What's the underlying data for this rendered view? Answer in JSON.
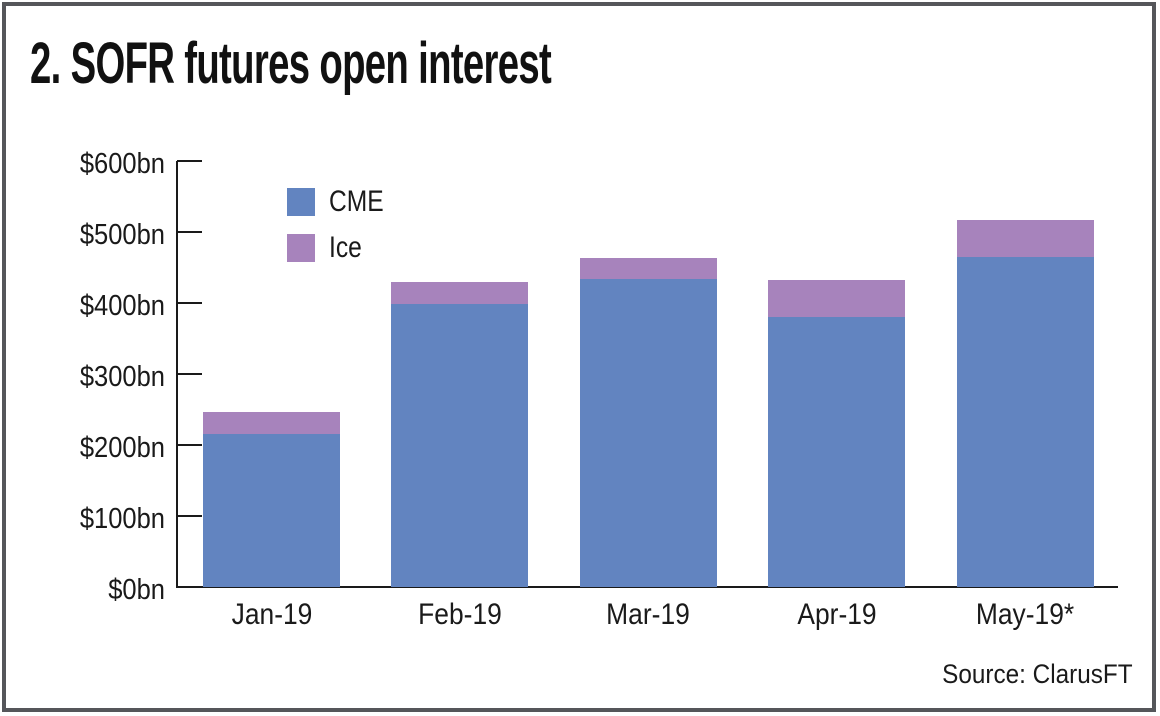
{
  "title": "2. SOFR futures open interest",
  "source": "Source: ClarusFT",
  "legend": [
    {
      "label": "CME",
      "color": "#6284c0"
    },
    {
      "label": "Ice",
      "color": "#a783bc"
    }
  ],
  "chart_data": {
    "type": "bar",
    "stacked": true,
    "title": "2. SOFR futures open interest",
    "categories": [
      "Jan-19",
      "Feb-19",
      "Mar-19",
      "Apr-19",
      "May-19*"
    ],
    "series": [
      {
        "name": "CME",
        "color": "#6284c0",
        "values": [
          215,
          398,
          434,
          380,
          465
        ]
      },
      {
        "name": "Ice",
        "color": "#a783bc",
        "values": [
          32,
          32,
          30,
          52,
          52
        ]
      }
    ],
    "totals": [
      247,
      430,
      464,
      432,
      517
    ],
    "unit": "USD billions",
    "ylim": [
      0,
      600
    ],
    "ytick_interval": 100,
    "yticks": [
      {
        "value": 0,
        "label": "$0bn"
      },
      {
        "value": 100,
        "label": "$100bn"
      },
      {
        "value": 200,
        "label": "$200bn"
      },
      {
        "value": 300,
        "label": "$300bn"
      },
      {
        "value": 400,
        "label": "$400bn"
      },
      {
        "value": 500,
        "label": "$500bn"
      },
      {
        "value": 600,
        "label": "$600bn"
      },
      {
        "value": 0,
        "label": "$0bn"
      }
    ],
    "grid": false,
    "legend_position": "upper-left-inside"
  }
}
